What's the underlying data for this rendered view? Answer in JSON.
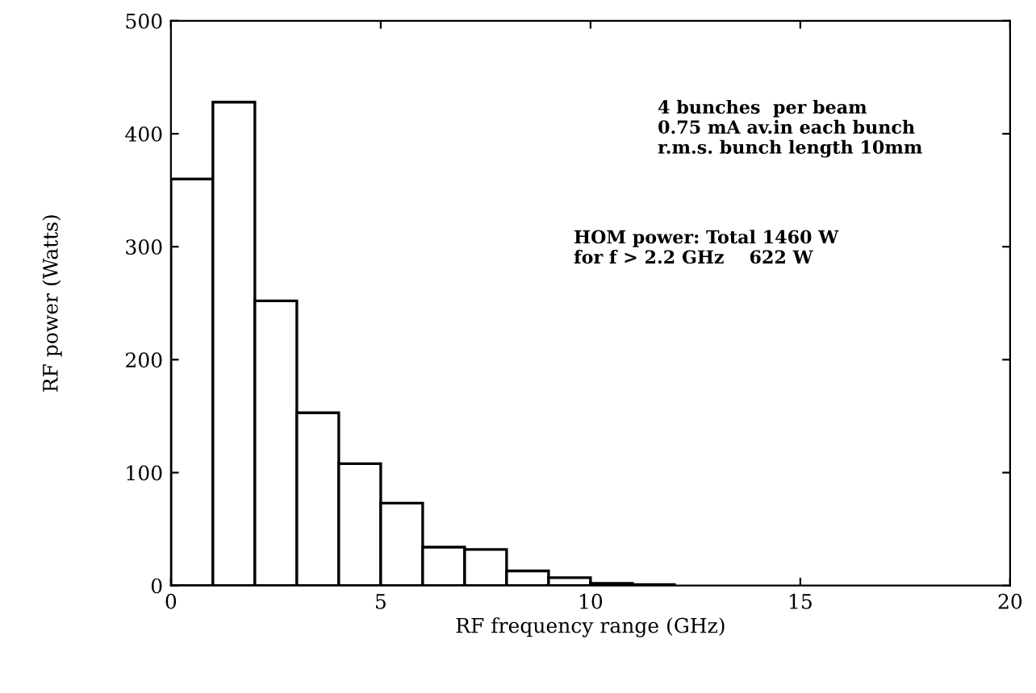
{
  "chart_data": {
    "type": "histogram",
    "xlabel": "RF frequency range (GHz)",
    "ylabel": "RF power (Watts)",
    "bins": [
      0,
      1,
      2,
      3,
      4,
      5,
      6,
      7,
      8,
      9,
      10,
      11,
      12
    ],
    "values": [
      360,
      428,
      252,
      153,
      108,
      73,
      34,
      32,
      13,
      7,
      2,
      1
    ],
    "color": "#ffffff",
    "xlim": [
      0,
      20
    ],
    "xticks": [
      0,
      5,
      10,
      15,
      20
    ],
    "ylim": [
      0,
      500
    ],
    "yticks": [
      0,
      100,
      200,
      300,
      400,
      500
    ],
    "grid": false,
    "legend": false,
    "annotations": [
      "4 bunches  per beam\n0.75 mA av.in each bunch\nr.m.s. bunch length 10mm",
      "HOM power: Total 1460 W\nfor f > 2.2 GHz    622 W"
    ]
  }
}
